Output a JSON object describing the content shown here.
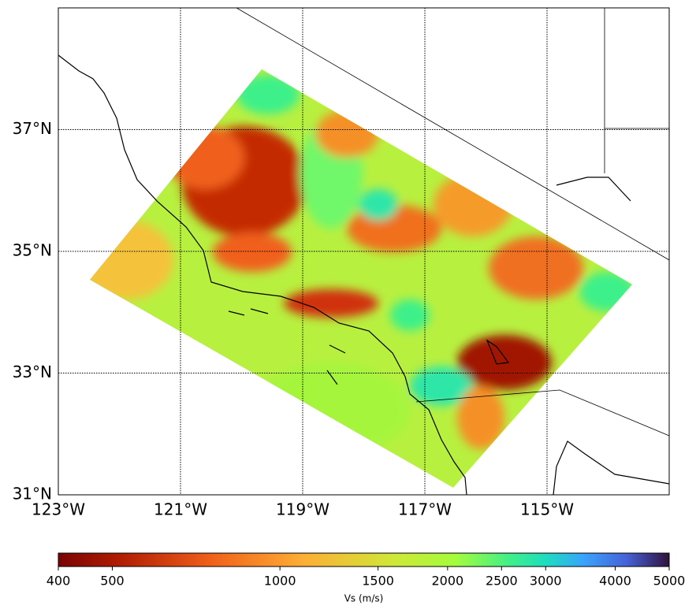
{
  "map": {
    "lonlim": [
      -123,
      -113
    ],
    "latlim": [
      31,
      39
    ],
    "lonticks": [
      {
        "value": -123,
        "label": "123°W"
      },
      {
        "value": -121,
        "label": "121°W"
      },
      {
        "value": -119,
        "label": "119°W"
      },
      {
        "value": -117,
        "label": "117°W"
      },
      {
        "value": -115,
        "label": "115°W"
      }
    ],
    "latticks": [
      {
        "value": 31,
        "label": "31°N"
      },
      {
        "value": 33,
        "label": "33°N"
      },
      {
        "value": 35,
        "label": "35°N"
      },
      {
        "value": 37,
        "label": "37°N"
      }
    ],
    "grid": true
  },
  "colorbar": {
    "label": "Vs (m/s)",
    "lim": [
      400,
      5000
    ],
    "log": true,
    "ticks": [
      400,
      500,
      1000,
      1500,
      2000,
      2500,
      3000,
      4000,
      5000
    ]
  }
}
